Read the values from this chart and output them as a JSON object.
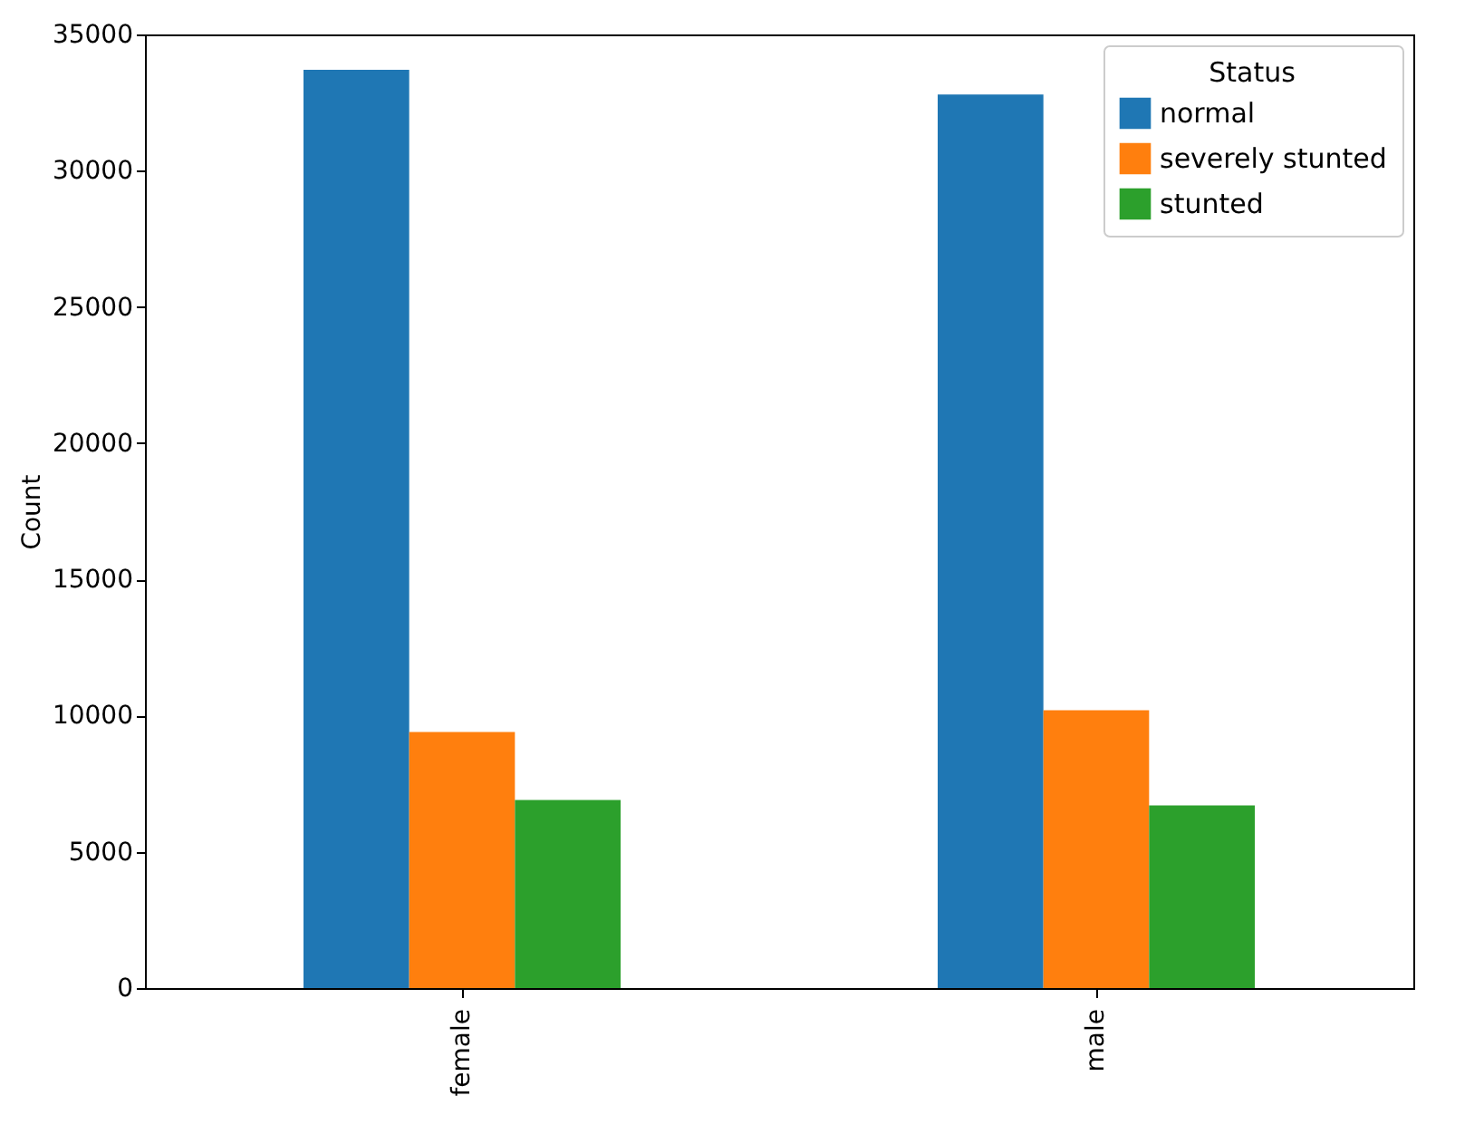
{
  "chart_data": {
    "type": "bar",
    "ylabel": "Count",
    "legend_title": "Status",
    "categories": [
      "female",
      "male"
    ],
    "series": [
      {
        "name": "normal",
        "color": "#1f77b4",
        "values": [
          33700,
          32800
        ]
      },
      {
        "name": "severely stunted",
        "color": "#ff7f0e",
        "values": [
          9400,
          10200
        ]
      },
      {
        "name": "stunted",
        "color": "#2ca02c",
        "values": [
          6900,
          6700
        ]
      }
    ],
    "ylim": [
      0,
      35000
    ],
    "yticks": [
      0,
      5000,
      10000,
      15000,
      20000,
      25000,
      30000,
      35000
    ],
    "grid": false,
    "legend": "top right"
  }
}
